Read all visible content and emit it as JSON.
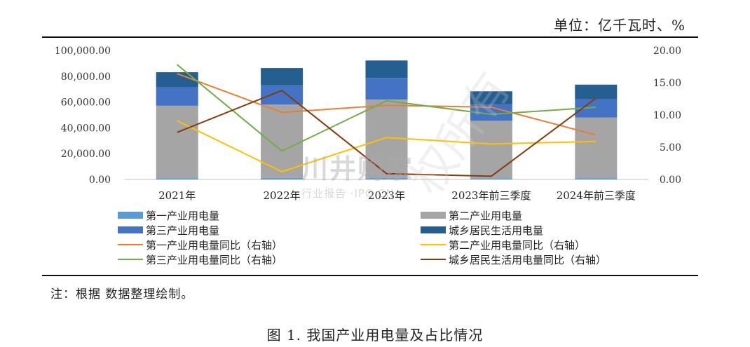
{
  "unit_label": "单位：亿千瓦时、%",
  "note": "注：根据        数据整理绘制。",
  "caption": "图 1. 我国产业用电量及占比情况",
  "watermark": {
    "main": "川井购家",
    "sub": "行业报告 ·IPO.CN",
    "diagonal": "权所有"
  },
  "colors": {
    "primary_bar": "#5b9bd5",
    "secondary_bar": "#a5a5a5",
    "tertiary_bar": "#4472c4",
    "residential_bar": "#255e91",
    "primary_line": "#ed7d31",
    "secondary_line": "#ffc000",
    "tertiary_line": "#70ad47",
    "residential_line": "#843c0c"
  },
  "chart_data": {
    "type": "bar",
    "title": "",
    "categories": [
      "2021年",
      "2022年",
      "2023年",
      "2023年前三季度",
      "2024年前三季度"
    ],
    "ylim": [
      0,
      100000
    ],
    "y_ticks": [
      "0.00",
      "20,000.00",
      "40,000.00",
      "60,000.00",
      "80,000.00",
      "100,000.00"
    ],
    "y2lim": [
      0,
      20
    ],
    "y2_ticks": [
      "0.00",
      "5.00",
      "10.00",
      "15.00",
      "20.00"
    ],
    "grid": false,
    "legend_position": "bottom",
    "series": [
      {
        "name": "第一产业用电量",
        "kind": "stacked-bar",
        "values": [
          1023,
          1146,
          1278,
          978,
          1054
        ]
      },
      {
        "name": "第二产业用电量",
        "kind": "stacked-bar",
        "values": [
          56131,
          57001,
          60745,
          44498,
          47028
        ]
      },
      {
        "name": "第三产业用电量",
        "kind": "stacked-bar",
        "values": [
          14231,
          14859,
          16694,
          12761,
          14081
        ]
      },
      {
        "name": "城乡居民生活用电量",
        "kind": "stacked-bar",
        "values": [
          11743,
          13366,
          13524,
          10105,
          11352
        ]
      },
      {
        "name": "第一产业用电量同比（右轴）",
        "kind": "line-right",
        "values": [
          16.4,
          10.4,
          11.5,
          11.2,
          6.9
        ]
      },
      {
        "name": "第二产业用电量同比（右轴）",
        "kind": "line-right",
        "values": [
          9.1,
          1.2,
          6.5,
          5.5,
          5.9
        ]
      },
      {
        "name": "第三产业用电量同比（右轴）",
        "kind": "line-right",
        "values": [
          17.8,
          4.4,
          12.2,
          10.1,
          11.2
        ]
      },
      {
        "name": "城乡居民生活用电量同比（右轴）",
        "kind": "line-right",
        "values": [
          7.3,
          13.8,
          0.9,
          0.5,
          12.6
        ]
      }
    ]
  }
}
